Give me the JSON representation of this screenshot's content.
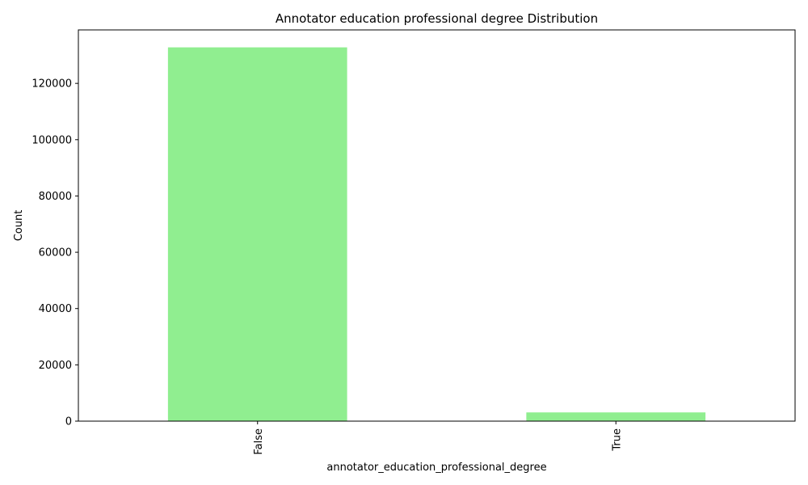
{
  "chart_data": {
    "type": "bar",
    "title": "Annotator education professional degree Distribution",
    "xlabel": "annotator_education_professional_degree",
    "ylabel": "Count",
    "categories": [
      "False",
      "True"
    ],
    "values": [
      132800,
      3100
    ],
    "ylim": [
      0,
      139000
    ],
    "yticks": [
      0,
      20000,
      40000,
      60000,
      80000,
      100000,
      120000
    ],
    "ytick_labels": [
      "0",
      "20000",
      "40000",
      "60000",
      "80000",
      "100000",
      "120000"
    ],
    "bar_color": "#90EE90",
    "grid": false,
    "x_tick_rotation": "vertical"
  }
}
